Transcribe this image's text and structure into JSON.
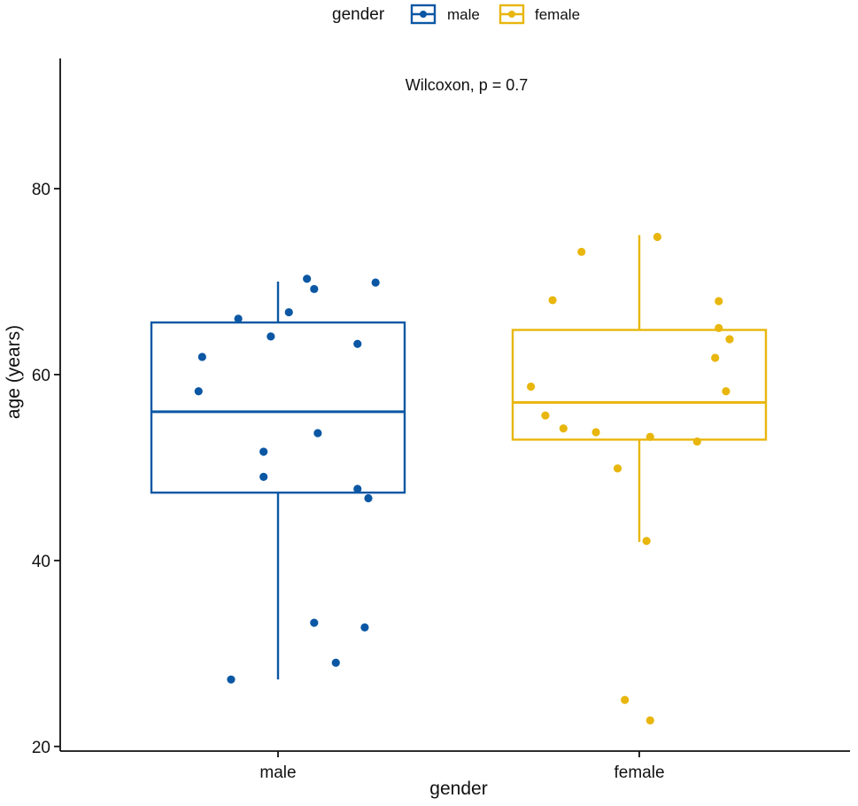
{
  "chart_data": {
    "type": "boxplot",
    "xlabel": "gender",
    "ylabel": "age  (years)",
    "ylim": [
      19.5,
      94
    ],
    "yticks": [
      20,
      40,
      60,
      80
    ],
    "categories": [
      "male",
      "female"
    ],
    "legend": {
      "title": "gender",
      "position": "top",
      "entries": [
        "male",
        "female"
      ]
    },
    "annotation": "Wilcoxon, p = 0.7",
    "colors": {
      "male": "#0b57a4",
      "female": "#e8b60c"
    },
    "boxes": [
      {
        "name": "male",
        "whisker_low": 27.2,
        "q1": 47.3,
        "median": 56.0,
        "q3": 65.6,
        "whisker_high": 70.0,
        "points": [
          {
            "x": 0.87,
            "y": 27.2
          },
          {
            "x": 1.16,
            "y": 29.0
          },
          {
            "x": 1.1,
            "y": 33.3
          },
          {
            "x": 1.24,
            "y": 32.8
          },
          {
            "x": 1.25,
            "y": 46.7
          },
          {
            "x": 1.22,
            "y": 47.7
          },
          {
            "x": 0.96,
            "y": 49.0
          },
          {
            "x": 0.96,
            "y": 51.7
          },
          {
            "x": 1.11,
            "y": 53.7
          },
          {
            "x": 0.78,
            "y": 58.2
          },
          {
            "x": 0.79,
            "y": 61.9
          },
          {
            "x": 1.22,
            "y": 63.3
          },
          {
            "x": 0.98,
            "y": 64.1
          },
          {
            "x": 0.89,
            "y": 66.0
          },
          {
            "x": 1.03,
            "y": 66.7
          },
          {
            "x": 1.1,
            "y": 69.2
          },
          {
            "x": 1.08,
            "y": 70.3
          },
          {
            "x": 1.27,
            "y": 69.9
          }
        ]
      },
      {
        "name": "female",
        "whisker_low": 42.0,
        "q1": 53.0,
        "median": 57.0,
        "q3": 64.8,
        "whisker_high": 75.0,
        "points": [
          {
            "x": 2.03,
            "y": 22.8
          },
          {
            "x": 1.96,
            "y": 25.0
          },
          {
            "x": 2.02,
            "y": 42.1
          },
          {
            "x": 1.94,
            "y": 49.9
          },
          {
            "x": 2.16,
            "y": 52.8
          },
          {
            "x": 2.03,
            "y": 53.3
          },
          {
            "x": 1.88,
            "y": 53.8
          },
          {
            "x": 1.79,
            "y": 54.2
          },
          {
            "x": 1.74,
            "y": 55.6
          },
          {
            "x": 1.7,
            "y": 58.7
          },
          {
            "x": 2.24,
            "y": 58.2
          },
          {
            "x": 2.21,
            "y": 61.8
          },
          {
            "x": 2.25,
            "y": 63.8
          },
          {
            "x": 2.22,
            "y": 65.0
          },
          {
            "x": 1.76,
            "y": 68.0
          },
          {
            "x": 2.22,
            "y": 67.9
          },
          {
            "x": 1.84,
            "y": 73.2
          },
          {
            "x": 2.05,
            "y": 74.8
          }
        ]
      }
    ]
  }
}
